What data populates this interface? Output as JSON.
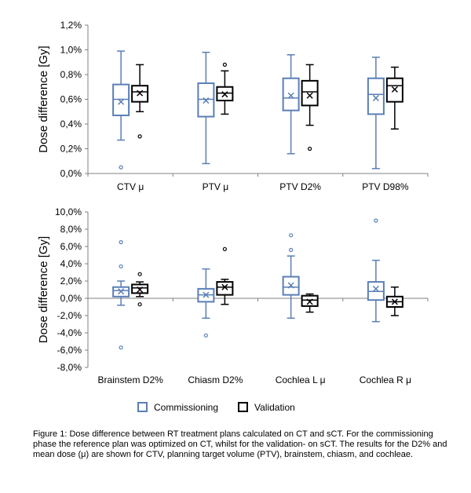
{
  "chart_data": [
    {
      "type": "box",
      "ylabel": "Dose difference [Gy]",
      "ylim": [
        0,
        1.2
      ],
      "yticks": [
        0,
        0.2,
        0.4,
        0.6,
        0.8,
        1.0,
        1.2
      ],
      "ytick_labels": [
        "0,0%",
        "0,2%",
        "0,4%",
        "0,6%",
        "0,8%",
        "1,0%",
        "1,2%"
      ],
      "grid": false,
      "categories": [
        "CTV μ",
        "PTV μ",
        "PTV  D2%",
        "PTV D98%"
      ],
      "series": [
        {
          "name": "Commissioning",
          "color": "#5a7fb5",
          "boxes": [
            {
              "min": 0.27,
              "q1": 0.47,
              "median": 0.6,
              "q3": 0.72,
              "max": 0.99,
              "mean": 0.58,
              "outliers": [
                0.05
              ]
            },
            {
              "min": 0.08,
              "q1": 0.46,
              "median": 0.6,
              "q3": 0.73,
              "max": 0.98,
              "mean": 0.59,
              "outliers": []
            },
            {
              "min": 0.16,
              "q1": 0.51,
              "median": 0.61,
              "q3": 0.77,
              "max": 0.96,
              "mean": 0.63,
              "outliers": []
            },
            {
              "min": 0.04,
              "q1": 0.48,
              "median": 0.64,
              "q3": 0.77,
              "max": 0.94,
              "mean": 0.61,
              "outliers": []
            }
          ]
        },
        {
          "name": "Validation",
          "color": "#000000",
          "boxes": [
            {
              "min": 0.5,
              "q1": 0.58,
              "median": 0.66,
              "q3": 0.71,
              "max": 0.88,
              "mean": 0.65,
              "outliers": [
                0.3
              ]
            },
            {
              "min": 0.48,
              "q1": 0.59,
              "median": 0.65,
              "q3": 0.7,
              "max": 0.83,
              "mean": 0.64,
              "outliers": [
                0.88
              ]
            },
            {
              "min": 0.39,
              "q1": 0.55,
              "median": 0.66,
              "q3": 0.75,
              "max": 0.88,
              "mean": 0.63,
              "outliers": [
                0.2
              ]
            },
            {
              "min": 0.36,
              "q1": 0.58,
              "median": 0.71,
              "q3": 0.77,
              "max": 0.86,
              "mean": 0.68,
              "outliers": []
            }
          ]
        }
      ]
    },
    {
      "type": "box",
      "ylabel": "Dose difference [Gy]",
      "ylim": [
        -8,
        10
      ],
      "yticks": [
        -8,
        -6,
        -4,
        -2,
        0,
        2,
        4,
        6,
        8,
        10
      ],
      "ytick_labels": [
        "-8,0%",
        "-6,0%",
        "-4,0%",
        "-2,0%",
        "0,0%",
        "2,0%",
        "4,0%",
        "6,0%",
        "8,0%",
        "10,0%"
      ],
      "grid": false,
      "categories": [
        "Brainstem D2%",
        "Chiasm D2%",
        "Cochlea L μ",
        "Cochlea R μ"
      ],
      "series": [
        {
          "name": "Commissioning",
          "color": "#5a7fb5",
          "boxes": [
            {
              "min": -0.8,
              "q1": 0.2,
              "median": 0.9,
              "q3": 1.3,
              "max": 2.0,
              "mean": 0.8,
              "outliers": [
                6.5,
                3.7,
                -5.7
              ]
            },
            {
              "min": -2.3,
              "q1": -0.4,
              "median": 0.4,
              "q3": 1.1,
              "max": 3.4,
              "mean": 0.4,
              "outliers": [
                -4.3
              ]
            },
            {
              "min": -2.3,
              "q1": 0.4,
              "median": 1.3,
              "q3": 2.5,
              "max": 4.9,
              "mean": 1.5,
              "outliers": [
                7.3,
                5.6
              ]
            },
            {
              "min": -2.7,
              "q1": -0.2,
              "median": 0.8,
              "q3": 1.9,
              "max": 4.4,
              "mean": 1.1,
              "outliers": [
                9.0
              ]
            }
          ]
        },
        {
          "name": "Validation",
          "color": "#000000",
          "boxes": [
            {
              "min": 0.2,
              "q1": 0.6,
              "median": 1.2,
              "q3": 1.6,
              "max": 1.9,
              "mean": 1.0,
              "outliers": [
                2.8,
                -0.7
              ]
            },
            {
              "min": -0.7,
              "q1": 0.4,
              "median": 1.3,
              "q3": 1.9,
              "max": 2.2,
              "mean": 1.3,
              "outliers": [
                5.7
              ]
            },
            {
              "min": -1.6,
              "q1": -0.9,
              "median": -0.2,
              "q3": 0.3,
              "max": 0.5,
              "mean": -0.4,
              "outliers": []
            },
            {
              "min": -2.0,
              "q1": -1.0,
              "median": -0.4,
              "q3": 0.2,
              "max": 1.3,
              "mean": -0.4,
              "outliers": []
            }
          ]
        }
      ]
    }
  ],
  "legend": {
    "commissioning": "Commissioning",
    "validation": "Validation"
  },
  "caption": "Figure 1: Dose difference between RT treatment plans calculated on CT and sCT. For the commissioning phase the reference plan was optimized on CT, whilst for the validation- on sCT. The results for the D2% and mean dose (μ) are shown for CTV, planning target volume (PTV), brainstem, chiasm, and cochleae."
}
